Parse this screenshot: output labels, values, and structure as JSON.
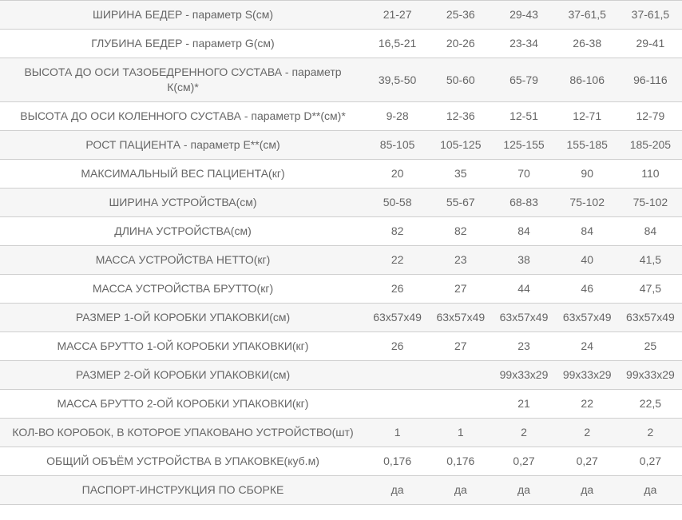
{
  "table": {
    "column_count": 5,
    "rows": [
      {
        "label": "ШИРИНА БЕДЕР - параметр S(см)",
        "values": [
          "21-27",
          "25-36",
          "29-43",
          "37-61,5",
          "37-61,5"
        ]
      },
      {
        "label": "ГЛУБИНА БЕДЕР - параметр G(см)",
        "values": [
          "16,5-21",
          "20-26",
          "23-34",
          "26-38",
          "29-41"
        ]
      },
      {
        "label": "ВЫСОТА ДО ОСИ ТАЗОБЕДРЕННОГО СУСТАВА - параметр К(см)*",
        "values": [
          "39,5-50",
          "50-60",
          "65-79",
          "86-106",
          "96-116"
        ]
      },
      {
        "label": "ВЫСОТА ДО ОСИ КОЛЕННОГО СУСТАВА - параметр D**(см)*",
        "values": [
          "9-28",
          "12-36",
          "12-51",
          "12-71",
          "12-79"
        ]
      },
      {
        "label": "РОСТ ПАЦИЕНТА - параметр Е**(см)",
        "values": [
          "85-105",
          "105-125",
          "125-155",
          "155-185",
          "185-205"
        ]
      },
      {
        "label": "МАКСИМАЛЬНЫЙ ВЕС ПАЦИЕНТА(кг)",
        "values": [
          "20",
          "35",
          "70",
          "90",
          "110"
        ]
      },
      {
        "label": "ШИРИНА УСТРОЙСТВА(см)",
        "values": [
          "50-58",
          "55-67",
          "68-83",
          "75-102",
          "75-102"
        ]
      },
      {
        "label": "ДЛИНА УСТРОЙСТВА(см)",
        "values": [
          "82",
          "82",
          "84",
          "84",
          "84"
        ]
      },
      {
        "label": "МАССА УСТРОЙСТВА НЕТТО(кг)",
        "values": [
          "22",
          "23",
          "38",
          "40",
          "41,5"
        ]
      },
      {
        "label": "МАССА УСТРОЙСТВА БРУТТО(кг)",
        "values": [
          "26",
          "27",
          "44",
          "46",
          "47,5"
        ]
      },
      {
        "label": "РАЗМЕР 1-ОЙ КОРОБКИ УПАКОВКИ(см)",
        "values": [
          "63x57x49",
          "63x57x49",
          "63x57x49",
          "63x57x49",
          "63x57x49"
        ]
      },
      {
        "label": "МАССА БРУТТО 1-ОЙ КОРОБКИ УПАКОВКИ(кг)",
        "values": [
          "26",
          "27",
          "23",
          "24",
          "25"
        ]
      },
      {
        "label": "РАЗМЕР 2-ОЙ КОРОБКИ УПАКОВКИ(см)",
        "values": [
          "",
          "",
          "99x33x29",
          "99x33x29",
          "99x33x29"
        ]
      },
      {
        "label": "МАССА БРУТТО 2-ОЙ КОРОБКИ УПАКОВКИ(кг)",
        "values": [
          "",
          "",
          "21",
          "22",
          "22,5"
        ]
      },
      {
        "label": "КОЛ-ВО КОРОБОК, В КОТОРОЕ УПАКОВАНО УСТРОЙСТВО(шт)",
        "values": [
          "1",
          "1",
          "2",
          "2",
          "2"
        ]
      },
      {
        "label": "ОБЩИЙ ОБЪЁМ УСТРОЙСТВА В УПАКОВКЕ(куб.м)",
        "values": [
          "0,176",
          "0,176",
          "0,27",
          "0,27",
          "0,27"
        ]
      },
      {
        "label": "ПАСПОРТ-ИНСТРУКЦИЯ ПО СБОРКЕ",
        "values": [
          "да",
          "да",
          "да",
          "да",
          "да"
        ]
      }
    ]
  },
  "colors": {
    "stripe_row_bg": "#f6f6f6",
    "plain_row_bg": "#ffffff",
    "separator": "#cfcfcf",
    "text": "#666666"
  }
}
